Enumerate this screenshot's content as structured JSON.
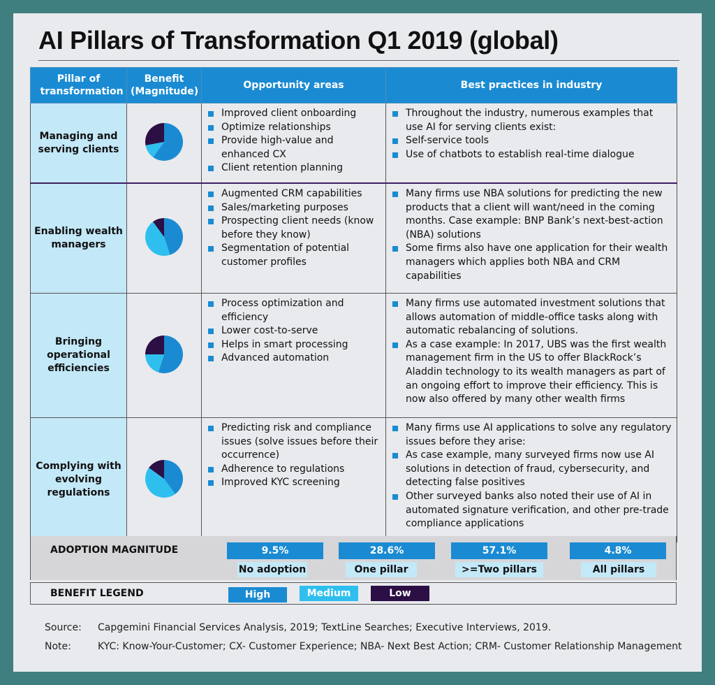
{
  "title": "AI Pillars of Transformation Q1 2019 (global)",
  "colors": {
    "high": "#1a8bd2",
    "medium": "#2fbfee",
    "low": "#2b0f45",
    "header_blue": "#1a8bd2",
    "pillar_bg": "#c3e8f7",
    "frame_teal": "#3f7f7f"
  },
  "headers": {
    "pillar": "Pillar of transformation",
    "benefit": "Benefit (Magnitude)",
    "opportunity": "Opportunity areas",
    "best": "Best practices in industry"
  },
  "rows": [
    {
      "pillar": "Managing and serving clients",
      "benefit": {
        "high": 0.6,
        "medium": 0.12,
        "low": 0.28
      },
      "opportunities": [
        "Improved client onboarding",
        "Optimize relationships",
        "Provide high-value and enhanced CX",
        "Client retention planning"
      ],
      "practices": [
        "Throughout the industry, numerous examples that use AI for serving clients exist:",
        "Self-service tools",
        "Use of chatbots to establish real-time dialogue"
      ]
    },
    {
      "pillar": "Enabling wealth managers",
      "benefit": {
        "high": 0.45,
        "medium": 0.45,
        "low": 0.1
      },
      "opportunities": [
        "Augmented CRM capabilities",
        "Sales/marketing purposes",
        "Prospecting client needs (know before they know)",
        "Segmentation of potential customer profiles"
      ],
      "practices": [
        "Many firms use NBA solutions for predicting the new products that a client will want/need in the coming months. Case example: BNP Bank’s next-best-action (NBA) solutions",
        "Some firms also have one application for their wealth managers which applies both NBA and CRM capabilities"
      ]
    },
    {
      "pillar": "Bringing operational efficiencies",
      "benefit": {
        "high": 0.55,
        "medium": 0.2,
        "low": 0.25
      },
      "opportunities": [
        "Process optimization and efficiency",
        "Lower cost-to-serve",
        "Helps in smart processing",
        "Advanced automation"
      ],
      "practices": [
        "Many firms use automated investment solutions that allows automation of middle-office tasks along with automatic rebalancing of solutions.",
        "As a case example: In 2017, UBS was the first wealth management firm in the US to offer BlackRock’s Aladdin technology to its wealth managers as part of an ongoing effort to improve their efficiency. This is now also offered by many other wealth firms"
      ]
    },
    {
      "pillar": "Complying with evolving regulations",
      "benefit": {
        "high": 0.4,
        "medium": 0.45,
        "low": 0.15
      },
      "opportunities": [
        "Predicting risk and compliance issues (solve issues before their occurrence)",
        "Adherence to regulations",
        "Improved KYC screening"
      ],
      "practices": [
        "Many firms use AI applications to solve any regulatory issues before they arise:",
        "As case example, many surveyed firms now use AI solutions in detection of fraud, cybersecurity, and detecting false positives",
        "Other surveyed banks also noted their use of AI in automated signature verification, and other pre-trade compliance applications"
      ]
    }
  ],
  "adoption": {
    "label": "ADOPTION MAGNITUDE",
    "items": [
      {
        "value": "9.5%",
        "caption": "No adoption"
      },
      {
        "value": "28.6%",
        "caption": "One pillar"
      },
      {
        "value": "57.1%",
        "caption": ">=Two pillars"
      },
      {
        "value": "4.8%",
        "caption": "All pillars"
      }
    ]
  },
  "legend": {
    "label": "BENEFIT LEGEND",
    "high": "High",
    "medium": "Medium",
    "low": "Low"
  },
  "footer": {
    "source_key": "Source:",
    "source": "Capgemini Financial Services Analysis, 2019; TextLine Searches; Executive Interviews, 2019.",
    "note_key": "Note:",
    "note": "KYC: Know-Your-Customer; CX- Customer Experience; NBA- Next Best Action; CRM- Customer Relationship Management"
  }
}
